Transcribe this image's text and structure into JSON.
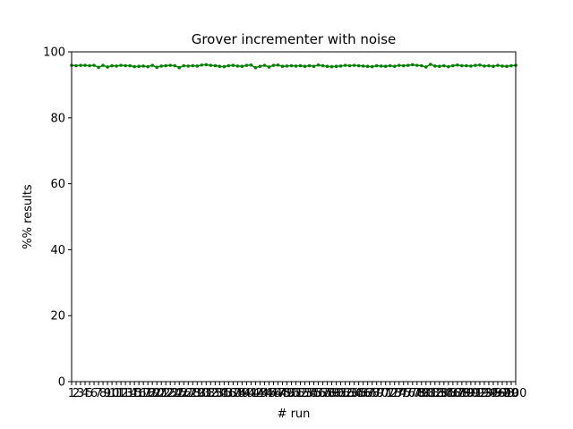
{
  "chart_data": {
    "type": "line",
    "title": "Grover incrementer with noise",
    "xlabel": "# run",
    "ylabel": "%% results",
    "xlim": [
      1,
      100
    ],
    "ylim": [
      0,
      100
    ],
    "y_ticks": [
      0,
      20,
      40,
      60,
      80,
      100
    ],
    "x_ticks": [
      1,
      2,
      3,
      4,
      5,
      6,
      7,
      8,
      9,
      10,
      11,
      12,
      13,
      14,
      15,
      16,
      17,
      18,
      19,
      20,
      21,
      22,
      23,
      24,
      25,
      26,
      27,
      28,
      29,
      30,
      31,
      32,
      33,
      34,
      35,
      36,
      37,
      38,
      39,
      40,
      41,
      42,
      43,
      44,
      45,
      46,
      47,
      48,
      49,
      50,
      51,
      52,
      53,
      54,
      55,
      56,
      57,
      58,
      59,
      60,
      61,
      62,
      63,
      64,
      65,
      66,
      67,
      68,
      69,
      70,
      71,
      72,
      73,
      74,
      75,
      76,
      77,
      78,
      79,
      80,
      81,
      82,
      83,
      84,
      85,
      86,
      87,
      88,
      89,
      90,
      91,
      92,
      93,
      94,
      95,
      96,
      97,
      98,
      99,
      100
    ],
    "grid": false,
    "legend": "none",
    "series": [
      {
        "color": "#008000",
        "marker": "dot",
        "x": [
          1,
          2,
          3,
          4,
          5,
          6,
          7,
          8,
          9,
          10,
          11,
          12,
          13,
          14,
          15,
          16,
          17,
          18,
          19,
          20,
          21,
          22,
          23,
          24,
          25,
          26,
          27,
          28,
          29,
          30,
          31,
          32,
          33,
          34,
          35,
          36,
          37,
          38,
          39,
          40,
          41,
          42,
          43,
          44,
          45,
          46,
          47,
          48,
          49,
          50,
          51,
          52,
          53,
          54,
          55,
          56,
          57,
          58,
          59,
          60,
          61,
          62,
          63,
          64,
          65,
          66,
          67,
          68,
          69,
          70,
          71,
          72,
          73,
          74,
          75,
          76,
          77,
          78,
          79,
          80,
          81,
          82,
          83,
          84,
          85,
          86,
          87,
          88,
          89,
          90,
          91,
          92,
          93,
          94,
          95,
          96,
          97,
          98,
          99,
          100
        ],
        "values": [
          95.9,
          95.8,
          95.9,
          95.9,
          95.8,
          95.9,
          95.3,
          95.9,
          95.4,
          95.8,
          95.7,
          95.9,
          95.8,
          95.8,
          95.5,
          95.6,
          95.7,
          95.5,
          95.9,
          95.3,
          95.7,
          95.8,
          95.9,
          95.8,
          95.2,
          95.8,
          95.7,
          95.8,
          95.7,
          96.0,
          96.1,
          95.9,
          95.8,
          95.6,
          95.5,
          95.8,
          95.9,
          95.7,
          95.6,
          95.9,
          96.0,
          95.2,
          95.6,
          95.9,
          95.4,
          95.9,
          96.0,
          95.6,
          95.7,
          95.8,
          95.7,
          95.8,
          95.6,
          95.8,
          95.6,
          96.0,
          95.8,
          95.6,
          95.5,
          95.6,
          95.7,
          95.9,
          95.8,
          95.9,
          95.8,
          95.7,
          95.6,
          95.5,
          95.8,
          95.7,
          95.6,
          95.8,
          95.6,
          95.9,
          95.8,
          95.9,
          96.1,
          95.9,
          95.8,
          95.4,
          96.2,
          95.7,
          95.6,
          95.8,
          95.5,
          95.8,
          96.0,
          95.8,
          95.8,
          95.7,
          95.9,
          96.0,
          95.7,
          95.8,
          95.6,
          95.9,
          95.7,
          95.6,
          95.8,
          95.9
        ]
      }
    ]
  }
}
